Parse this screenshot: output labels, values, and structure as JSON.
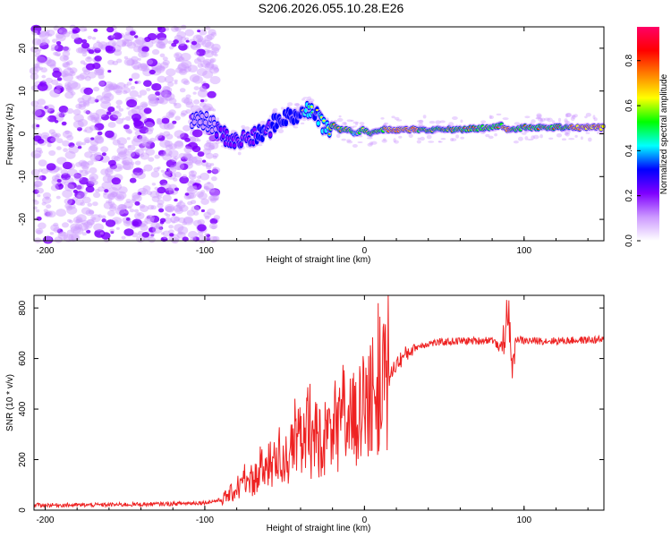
{
  "title": "S206.2026.055.10.28.E26",
  "colors": {
    "snr_line": "#ee2222",
    "background": "#ffffff",
    "frame": "#000000"
  },
  "colormap": [
    "#ffffff",
    "#cc99ff",
    "#7f00ff",
    "#0000ff",
    "#00ffff",
    "#00ff00",
    "#ffff00",
    "#ff8000",
    "#ff0000",
    "#ff0066"
  ],
  "chart_data": [
    {
      "type": "heatmap",
      "name": "spectrogram",
      "xlabel": "Height of straight line (km)",
      "ylabel": "Frequency (Hz)",
      "xlim": [
        -207,
        150
      ],
      "ylim": [
        -25,
        25
      ],
      "xticks": [
        -200,
        -100,
        0,
        100
      ],
      "xtick_labels": [
        "-200",
        "-100",
        "0",
        "100"
      ],
      "yticks": [
        -20,
        -10,
        0,
        10,
        20
      ],
      "ytick_labels": [
        "-20",
        "-10",
        "0",
        "10",
        "20"
      ],
      "colorbar": {
        "label": "Normalized spectral amplitude",
        "range": [
          0,
          0.95
        ],
        "ticks": [
          0,
          0.2,
          0.4,
          0.6,
          0.8
        ],
        "tick_labels": [
          "0.0",
          "0.2",
          "0.4",
          "0.6",
          "0.8"
        ]
      },
      "tone_ridge": {
        "x": [
          -100,
          -95,
          -90,
          -85,
          -80,
          -75,
          -70,
          -65,
          -60,
          -55,
          -50,
          -45,
          -40,
          -35,
          -30,
          -25,
          -20,
          -15,
          -10,
          -5,
          0,
          5,
          10,
          20,
          40,
          60,
          80,
          85,
          90,
          95,
          100,
          120,
          150
        ],
        "freq": [
          3,
          2,
          0,
          -1,
          -2,
          -1,
          -1,
          0,
          1,
          3,
          4,
          4,
          5,
          6,
          5,
          1,
          2,
          1,
          1,
          0,
          1,
          0,
          1,
          1,
          1,
          1,
          1.5,
          2,
          1,
          1,
          1.5,
          1.5,
          1.5
        ],
        "amplitude": [
          0.15,
          0.2,
          0.25,
          0.3,
          0.35,
          0.3,
          0.35,
          0.4,
          0.35,
          0.4,
          0.45,
          0.45,
          0.5,
          0.55,
          0.5,
          0.6,
          0.7,
          0.75,
          0.7,
          0.65,
          0.7,
          0.75,
          0.8,
          0.85,
          0.8,
          0.8,
          0.75,
          0.8,
          0.85,
          0.75,
          0.8,
          0.8,
          0.85
        ]
      }
    },
    {
      "type": "line",
      "name": "snr",
      "xlabel": "Height of straight line (km)",
      "ylabel": "SNR (10 * v/v)",
      "xlim": [
        -207,
        150
      ],
      "ylim": [
        0,
        850
      ],
      "xticks": [
        -200,
        -100,
        0,
        100
      ],
      "xtick_labels": [
        "-200",
        "-100",
        "0",
        "100"
      ],
      "yticks": [
        0,
        200,
        400,
        600,
        800
      ],
      "ytick_labels": [
        "0",
        "200",
        "400",
        "600",
        "800"
      ],
      "series": [
        {
          "name": "SNR",
          "x": [
            -207,
            -180,
            -150,
            -120,
            -100,
            -90,
            -80,
            -70,
            -60,
            -50,
            -40,
            -30,
            -20,
            -10,
            0,
            10,
            20,
            30,
            40,
            50,
            60,
            70,
            80,
            85,
            88,
            90,
            92,
            95,
            100,
            120,
            150
          ],
          "y": [
            20,
            20,
            22,
            25,
            30,
            40,
            80,
            120,
            170,
            200,
            250,
            280,
            300,
            340,
            380,
            450,
            580,
            640,
            660,
            665,
            670,
            670,
            675,
            640,
            700,
            820,
            560,
            680,
            670,
            670,
            675
          ]
        }
      ]
    }
  ]
}
